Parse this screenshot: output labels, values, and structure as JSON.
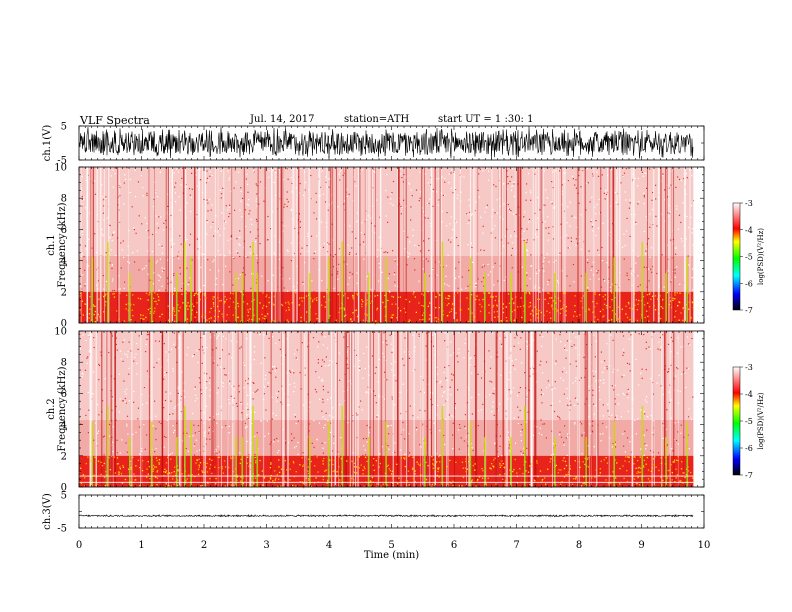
{
  "header": {
    "title": "VLF Spectra",
    "date": "Jul. 14, 2017",
    "station": "station=ATH",
    "start": "start UT = 1 :30: 1"
  },
  "chart_data": [
    {
      "type": "line",
      "panel": "ch1-waveform",
      "ylabel": "ch.1(V)",
      "ylim": [
        -5,
        5
      ],
      "yticks": [
        "5",
        "-5"
      ],
      "xlim": [
        0,
        10
      ],
      "x_extent": [
        0,
        9.83
      ],
      "approx_amplitude_range": [
        -4.8,
        4.8
      ],
      "color": "#000000"
    },
    {
      "type": "heatmap",
      "panel": "ch1-spectrogram",
      "ylabel": "ch.1\nFrequency (kHz)",
      "ylim": [
        0,
        10
      ],
      "yticks": [
        "0",
        "2",
        "4",
        "6",
        "8",
        "10"
      ],
      "xlim": [
        0,
        10
      ],
      "x_extent": [
        0,
        9.83
      ],
      "intense_band_khz": [
        0,
        2
      ],
      "band_level_log_psd": -4.0,
      "background_level_log_psd": -3.3,
      "fading_band_khz": [
        2,
        4.3
      ],
      "colorbar": {
        "label": "log(PSD)(V²/Hz)",
        "range": [
          -7,
          -3
        ],
        "ticks": [
          "-3",
          "-4",
          "-5",
          "-6",
          "-7"
        ],
        "colors": [
          "#000000",
          "#0000ff",
          "#00ffff",
          "#00ff00",
          "#ffff00",
          "#ff0000",
          "#ffffff"
        ]
      },
      "bursts_min": [
        0.2,
        0.45,
        0.8,
        1.15,
        1.55,
        1.68,
        1.78,
        2.5,
        2.6,
        2.77,
        2.84,
        3.68,
        3.98,
        4.2,
        4.62,
        4.9,
        5.52,
        5.8,
        6.25,
        6.48,
        6.9,
        7.12,
        7.6,
        8.1,
        8.55,
        9.0,
        9.38,
        9.72
      ]
    },
    {
      "type": "heatmap",
      "panel": "ch2-spectrogram",
      "ylabel": "ch.2\nFrequency (kHz)",
      "ylim": [
        0,
        10
      ],
      "yticks": [
        "0",
        "2",
        "4",
        "6",
        "8",
        "10"
      ],
      "xlim": [
        0,
        10
      ],
      "x_extent": [
        0,
        9.83
      ],
      "intense_band_khz": [
        0,
        2
      ],
      "band_level_log_psd": -4.0,
      "background_level_log_psd": -3.3,
      "fading_band_khz": [
        2,
        4.3
      ],
      "horizontal_lines_khz": [
        0.3,
        0.7
      ],
      "colorbar": {
        "label": "log(PSD)(V²/Hz)",
        "range": [
          -7,
          -3
        ],
        "ticks": [
          "-3",
          "-4",
          "-5",
          "-6",
          "-7"
        ],
        "colors": [
          "#000000",
          "#0000ff",
          "#00ffff",
          "#00ff00",
          "#ffff00",
          "#ff0000",
          "#ffffff"
        ]
      },
      "bursts_min": [
        0.2,
        0.45,
        0.8,
        1.15,
        1.55,
        1.68,
        1.78,
        2.5,
        2.6,
        2.77,
        2.84,
        3.68,
        3.98,
        4.2,
        4.62,
        4.9,
        5.52,
        5.8,
        6.25,
        6.48,
        6.9,
        7.12,
        7.6,
        8.1,
        8.55,
        9.0,
        9.38,
        9.72
      ]
    },
    {
      "type": "line",
      "panel": "ch3-waveform",
      "ylabel": "ch.3(V)",
      "ylim": [
        -5,
        5
      ],
      "yticks": [
        "5",
        "-5"
      ],
      "xlim": [
        0,
        10
      ],
      "x_extent": [
        0,
        9.83
      ],
      "approx_amplitude_range": [
        -1.6,
        -1.0
      ],
      "color": "#000000"
    }
  ],
  "xaxis": {
    "label": "Time (min)",
    "ticks": [
      "0",
      "1",
      "2",
      "3",
      "4",
      "5",
      "6",
      "7",
      "8",
      "9",
      "10"
    ]
  }
}
